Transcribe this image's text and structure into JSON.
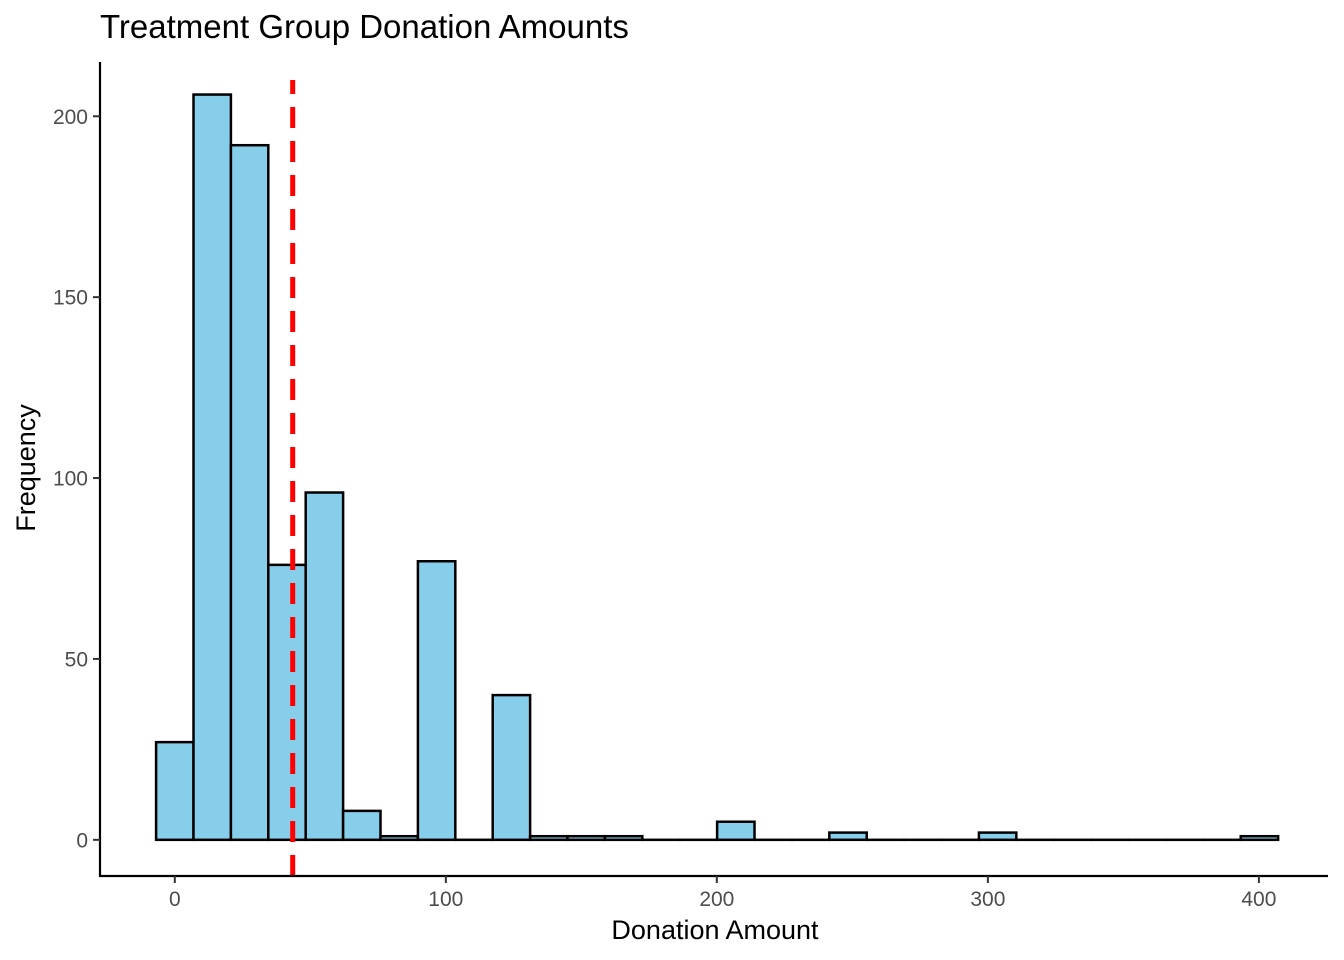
{
  "chart_data": {
    "type": "bar",
    "title": "Treatment Group Donation Amounts",
    "xlabel": "Donation Amount",
    "ylabel": "Frequency",
    "bin_width": 13.8,
    "bin_start": -6.9,
    "values": [
      27,
      206,
      192,
      76,
      96,
      8,
      1,
      77,
      0,
      40,
      1,
      1,
      1,
      0,
      0,
      5,
      0,
      0,
      2,
      0,
      0,
      0,
      2,
      0,
      0,
      0,
      0,
      0,
      0,
      1
    ],
    "xlim": [
      -27.6,
      425.5
    ],
    "ylim": [
      -10,
      215
    ],
    "x_ticks": [
      0,
      100,
      200,
      300,
      400
    ],
    "y_ticks": [
      0,
      50,
      100,
      150,
      200
    ],
    "mean_line": {
      "x": 43.5,
      "color": "#ff0000",
      "style": "dashed"
    },
    "bar_fill": "#87ceeb",
    "bar_stroke": "#000000",
    "grid": false,
    "legend": "none"
  }
}
